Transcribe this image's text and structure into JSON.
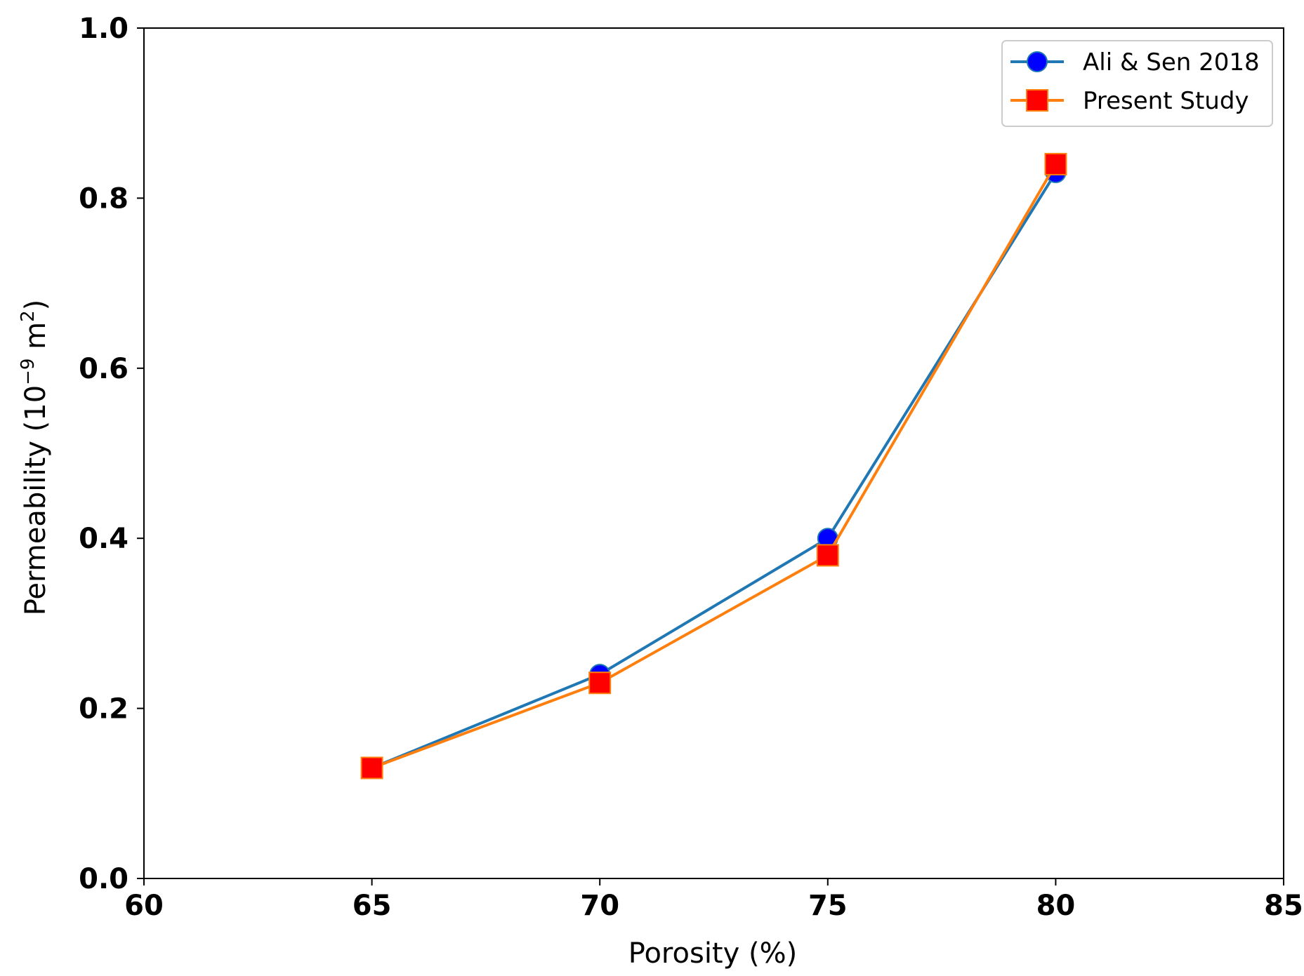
{
  "chart_data": {
    "type": "line",
    "title": "",
    "xlabel": "Porosity (%)",
    "ylabel": {
      "prefix": "Permeability (10",
      "exponent": "−9",
      "middle": " m",
      "unit_exponent": "2",
      "suffix": ")"
    },
    "xlim": [
      60,
      85
    ],
    "ylim": [
      0.0,
      1.0
    ],
    "x_ticks": [
      60,
      65,
      70,
      75,
      80,
      85
    ],
    "x_tick_labels": [
      "60",
      "65",
      "70",
      "75",
      "80",
      "85"
    ],
    "y_ticks": [
      0.0,
      0.2,
      0.4,
      0.6,
      0.8,
      1.0
    ],
    "y_tick_labels": [
      "0.0",
      "0.2",
      "0.4",
      "0.6",
      "0.8",
      "1.0"
    ],
    "grid": false,
    "legend_position": "top-right",
    "series": [
      {
        "name": "Ali & Sen 2018",
        "x": [
          65,
          70,
          75,
          80
        ],
        "y": [
          0.13,
          0.24,
          0.4,
          0.83
        ],
        "line_color": "#1f77b4",
        "marker": "circle",
        "marker_color": "#0000ff"
      },
      {
        "name": "Present Study",
        "x": [
          65,
          70,
          75,
          80
        ],
        "y": [
          0.13,
          0.23,
          0.38,
          0.84
        ],
        "line_color": "#ff7f0e",
        "marker": "square",
        "marker_color": "#ff0000"
      }
    ]
  }
}
